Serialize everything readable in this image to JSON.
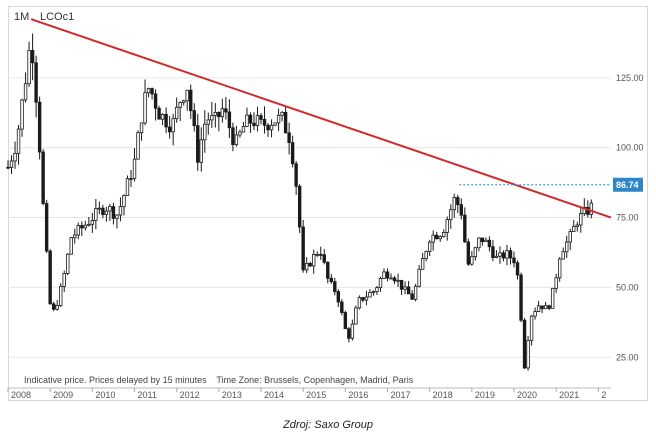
{
  "chart_data": {
    "type": "candlestick",
    "title": "",
    "timeframe_label": "1M",
    "symbol_label": "LCOc1",
    "x_ticks": [
      "2008",
      "2009",
      "2010",
      "2011",
      "2012",
      "2013",
      "2014",
      "2015",
      "2016",
      "2017",
      "2018",
      "2019",
      "2020",
      "2021",
      "2"
    ],
    "y_ticks": [
      "125.00",
      "100.00",
      "75.00",
      "50.00",
      "25.00"
    ],
    "ylim": [
      14,
      150
    ],
    "xlim": [
      2008.0,
      2022.3
    ],
    "price_marker": {
      "label": "86.74",
      "value": 86.74,
      "start_x": 2018.7
    },
    "trendline": {
      "start": {
        "x": 2008.55,
        "y": 146
      },
      "end": {
        "x": 2022.3,
        "y": 75
      }
    },
    "note": "Indicative price. Prices delayed by 15 minutes    Time Zone: Brussels, Copenhagen, Madrid, Paris",
    "series_anchor_points": [
      [
        2008.0,
        93
      ],
      [
        2008.2,
        102
      ],
      [
        2008.4,
        123
      ],
      [
        2008.55,
        140
      ],
      [
        2008.7,
        113
      ],
      [
        2008.85,
        75
      ],
      [
        2009.0,
        44
      ],
      [
        2009.1,
        41
      ],
      [
        2009.3,
        52
      ],
      [
        2009.5,
        68
      ],
      [
        2009.8,
        72
      ],
      [
        2010.0,
        75
      ],
      [
        2010.3,
        79
      ],
      [
        2010.6,
        76
      ],
      [
        2010.9,
        90
      ],
      [
        2011.0,
        95
      ],
      [
        2011.2,
        115
      ],
      [
        2011.35,
        122
      ],
      [
        2011.6,
        112
      ],
      [
        2011.9,
        108
      ],
      [
        2012.1,
        118
      ],
      [
        2012.25,
        122
      ],
      [
        2012.5,
        97
      ],
      [
        2012.7,
        111
      ],
      [
        2012.9,
        109
      ],
      [
        2013.1,
        114
      ],
      [
        2013.4,
        101
      ],
      [
        2013.6,
        108
      ],
      [
        2013.8,
        110
      ],
      [
        2014.0,
        108
      ],
      [
        2014.3,
        110
      ],
      [
        2014.5,
        110
      ],
      [
        2014.7,
        103
      ],
      [
        2014.85,
        85
      ],
      [
        2015.0,
        55
      ],
      [
        2015.2,
        60
      ],
      [
        2015.4,
        64
      ],
      [
        2015.6,
        52
      ],
      [
        2015.8,
        48
      ],
      [
        2016.0,
        35
      ],
      [
        2016.1,
        32
      ],
      [
        2016.3,
        45
      ],
      [
        2016.5,
        47
      ],
      [
        2016.7,
        49
      ],
      [
        2016.9,
        55
      ],
      [
        2017.1,
        55
      ],
      [
        2017.4,
        49
      ],
      [
        2017.6,
        46
      ],
      [
        2017.8,
        58
      ],
      [
        2018.0,
        68
      ],
      [
        2018.3,
        70
      ],
      [
        2018.6,
        82
      ],
      [
        2018.75,
        77
      ],
      [
        2018.9,
        58
      ],
      [
        2019.0,
        60
      ],
      [
        2019.2,
        68
      ],
      [
        2019.4,
        65
      ],
      [
        2019.6,
        60
      ],
      [
        2019.8,
        62
      ],
      [
        2020.0,
        60
      ],
      [
        2020.1,
        53
      ],
      [
        2020.25,
        22
      ],
      [
        2020.4,
        40
      ],
      [
        2020.6,
        44
      ],
      [
        2020.8,
        42
      ],
      [
        2020.95,
        50
      ],
      [
        2021.1,
        63
      ],
      [
        2021.3,
        67
      ],
      [
        2021.5,
        74
      ],
      [
        2021.7,
        77
      ],
      [
        2021.85,
        79
      ]
    ]
  },
  "footer": {
    "source": "Zdroj: Saxo Group"
  },
  "colors": {
    "candle": "#1a1a1a",
    "trendline": "#d12a2a",
    "marker_line": "#3aa6e0",
    "marker_box": "#2e86c8",
    "tick_text": "#555555",
    "grid": "#e6e6e6"
  }
}
